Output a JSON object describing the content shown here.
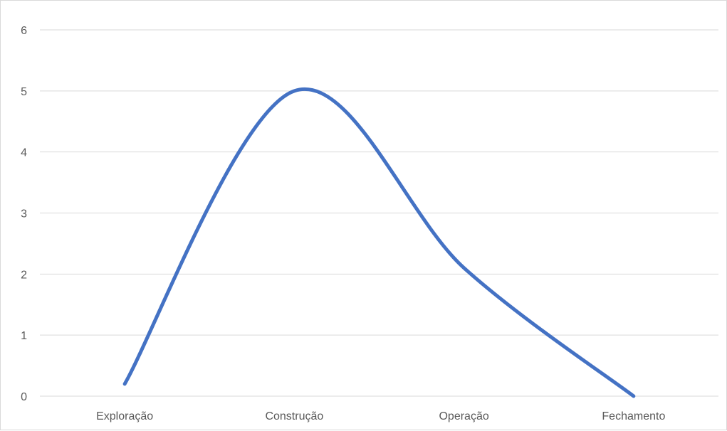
{
  "chart_data": {
    "type": "line",
    "smooth": true,
    "categories": [
      "Exploração",
      "Construção",
      "Operação",
      "Fechamento"
    ],
    "series": [
      {
        "values": [
          0.2,
          5,
          2.1,
          0
        ]
      }
    ],
    "ylim": [
      0,
      6
    ],
    "yticks": [
      0,
      1,
      2,
      3,
      4,
      5,
      6
    ],
    "grid": true,
    "legend": "none",
    "colors": {
      "line": "#4472C4",
      "grid": "#D9D9D9",
      "tick_text": "#595959"
    }
  }
}
